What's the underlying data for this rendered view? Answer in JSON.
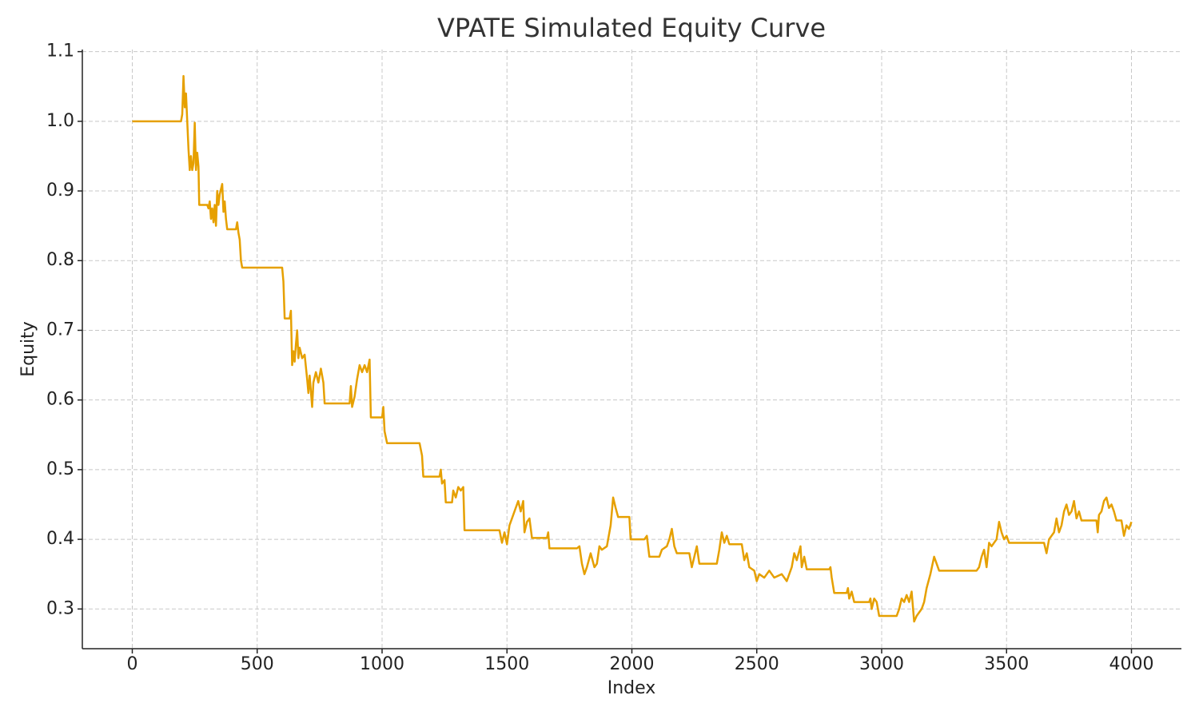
{
  "chart_data": {
    "type": "line",
    "title": "VPATE Simulated Equity Curve",
    "x_label": "Index",
    "y_label": "Equity",
    "xlim": [
      -200,
      4200
    ],
    "ylim": [
      0.243,
      1.103
    ],
    "xticks": [
      0,
      500,
      1000,
      1500,
      2000,
      2500,
      3000,
      3500,
      4000
    ],
    "yticks": [
      0.3,
      0.4,
      0.5,
      0.6,
      0.7,
      0.8,
      0.9,
      {
        "value": 1,
        "label": "1.0"
      },
      1.1
    ],
    "grid": true,
    "series": [
      {
        "color": "#e6a000",
        "x": [
          0,
          195,
          200,
          205,
          210,
          215,
          220,
          225,
          230,
          235,
          240,
          245,
          250,
          255,
          260,
          265,
          268,
          300,
          305,
          310,
          315,
          320,
          325,
          330,
          335,
          340,
          345,
          350,
          360,
          365,
          370,
          375,
          380,
          415,
          420,
          425,
          430,
          435,
          440,
          600,
          605,
          610,
          630,
          635,
          640,
          645,
          650,
          655,
          660,
          665,
          670,
          680,
          690,
          700,
          705,
          710,
          720,
          725,
          735,
          745,
          755,
          765,
          770,
          870,
          875,
          880,
          890,
          900,
          910,
          920,
          930,
          940,
          950,
          955,
          1000,
          1005,
          1010,
          1020,
          1150,
          1160,
          1165,
          1230,
          1235,
          1240,
          1250,
          1255,
          1280,
          1285,
          1295,
          1305,
          1315,
          1325,
          1330,
          1470,
          1480,
          1490,
          1500,
          1510,
          1520,
          1530,
          1545,
          1555,
          1565,
          1570,
          1580,
          1590,
          1600,
          1660,
          1665,
          1670,
          1780,
          1790,
          1800,
          1810,
          1820,
          1835,
          1850,
          1860,
          1870,
          1880,
          1900,
          1915,
          1925,
          1935,
          1945,
          1990,
          1995,
          2050,
          2060,
          2070,
          2110,
          2120,
          2140,
          2150,
          2160,
          2170,
          2180,
          2230,
          2240,
          2250,
          2260,
          2270,
          2340,
          2350,
          2360,
          2370,
          2380,
          2390,
          2440,
          2450,
          2460,
          2470,
          2490,
          2500,
          2510,
          2530,
          2550,
          2570,
          2600,
          2620,
          2640,
          2650,
          2660,
          2675,
          2680,
          2690,
          2700,
          2790,
          2795,
          2800,
          2810,
          2860,
          2865,
          2870,
          2880,
          2890,
          2950,
          2955,
          2960,
          2970,
          2980,
          2990,
          3060,
          3070,
          3080,
          3090,
          3100,
          3110,
          3120,
          3130,
          3140,
          3160,
          3170,
          3180,
          3195,
          3210,
          3220,
          3230,
          3380,
          3390,
          3400,
          3410,
          3420,
          3430,
          3440,
          3460,
          3470,
          3480,
          3490,
          3500,
          3510,
          3650,
          3660,
          3670,
          3690,
          3700,
          3710,
          3720,
          3730,
          3740,
          3750,
          3760,
          3770,
          3780,
          3790,
          3800,
          3860,
          3865,
          3870,
          3880,
          3890,
          3900,
          3910,
          3920,
          3930,
          3940,
          3960,
          3970,
          3980,
          3990,
          4000
        ],
        "values": [
          1.0,
          1.0,
          1.01,
          1.065,
          1.02,
          1.04,
          1.0,
          0.96,
          0.93,
          0.95,
          0.93,
          0.94,
          0.998,
          0.93,
          0.955,
          0.935,
          0.88,
          0.88,
          0.875,
          0.885,
          0.86,
          0.875,
          0.855,
          0.88,
          0.85,
          0.9,
          0.88,
          0.895,
          0.91,
          0.87,
          0.885,
          0.86,
          0.845,
          0.845,
          0.855,
          0.84,
          0.83,
          0.8,
          0.79,
          0.79,
          0.77,
          0.717,
          0.717,
          0.728,
          0.65,
          0.67,
          0.655,
          0.68,
          0.7,
          0.66,
          0.675,
          0.66,
          0.665,
          0.63,
          0.61,
          0.635,
          0.59,
          0.625,
          0.64,
          0.625,
          0.645,
          0.625,
          0.595,
          0.595,
          0.62,
          0.59,
          0.605,
          0.63,
          0.65,
          0.64,
          0.65,
          0.64,
          0.658,
          0.575,
          0.575,
          0.59,
          0.555,
          0.538,
          0.538,
          0.52,
          0.49,
          0.49,
          0.5,
          0.48,
          0.485,
          0.453,
          0.453,
          0.47,
          0.46,
          0.475,
          0.47,
          0.475,
          0.413,
          0.413,
          0.395,
          0.41,
          0.393,
          0.42,
          0.43,
          0.44,
          0.455,
          0.44,
          0.455,
          0.41,
          0.425,
          0.43,
          0.402,
          0.402,
          0.41,
          0.387,
          0.387,
          0.39,
          0.365,
          0.35,
          0.36,
          0.38,
          0.36,
          0.365,
          0.39,
          0.385,
          0.39,
          0.42,
          0.46,
          0.445,
          0.432,
          0.432,
          0.4,
          0.4,
          0.405,
          0.375,
          0.375,
          0.385,
          0.39,
          0.4,
          0.415,
          0.39,
          0.38,
          0.38,
          0.36,
          0.375,
          0.39,
          0.365,
          0.365,
          0.385,
          0.41,
          0.395,
          0.405,
          0.393,
          0.393,
          0.37,
          0.38,
          0.36,
          0.355,
          0.34,
          0.35,
          0.345,
          0.355,
          0.345,
          0.35,
          0.34,
          0.36,
          0.38,
          0.37,
          0.39,
          0.36,
          0.375,
          0.357,
          0.357,
          0.36,
          0.345,
          0.323,
          0.323,
          0.33,
          0.315,
          0.325,
          0.31,
          0.31,
          0.315,
          0.3,
          0.315,
          0.31,
          0.29,
          0.29,
          0.3,
          0.315,
          0.31,
          0.32,
          0.31,
          0.325,
          0.282,
          0.29,
          0.3,
          0.31,
          0.33,
          0.35,
          0.375,
          0.365,
          0.355,
          0.355,
          0.36,
          0.375,
          0.385,
          0.36,
          0.395,
          0.39,
          0.4,
          0.425,
          0.41,
          0.4,
          0.405,
          0.395,
          0.395,
          0.38,
          0.4,
          0.41,
          0.43,
          0.41,
          0.42,
          0.44,
          0.45,
          0.435,
          0.44,
          0.455,
          0.43,
          0.44,
          0.427,
          0.427,
          0.41,
          0.435,
          0.44,
          0.455,
          0.46,
          0.445,
          0.45,
          0.44,
          0.427,
          0.427,
          0.405,
          0.42,
          0.415,
          0.425
        ]
      }
    ]
  }
}
